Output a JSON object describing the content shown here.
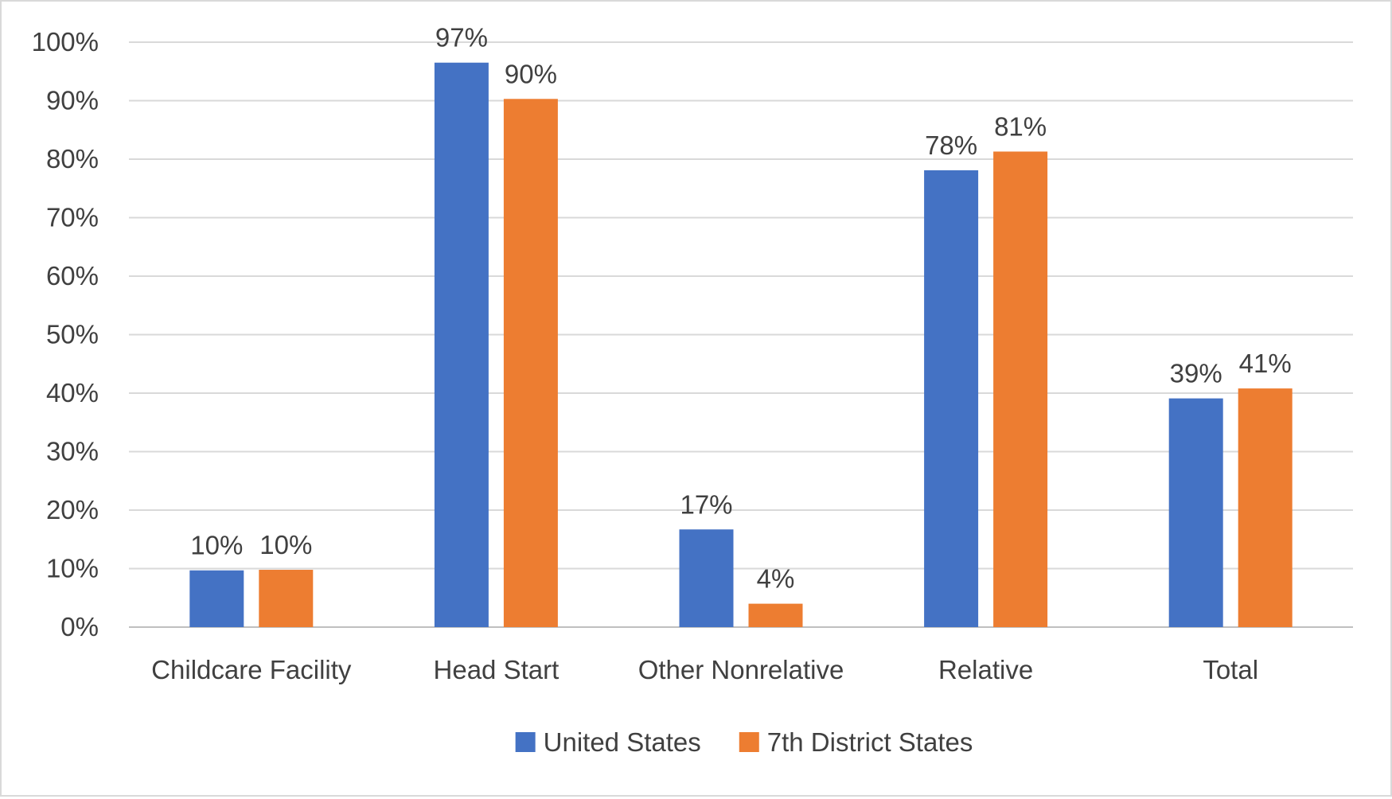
{
  "chart_data": {
    "type": "bar",
    "title": "",
    "xlabel": "",
    "ylabel": "",
    "ylim": [
      0,
      100
    ],
    "y_ticks": [
      "0%",
      "10%",
      "20%",
      "30%",
      "40%",
      "50%",
      "60%",
      "70%",
      "80%",
      "90%",
      "100%"
    ],
    "grid": true,
    "legend_position": "bottom",
    "categories": [
      "Childcare Facility",
      "Head Start",
      "Other Nonrelative",
      "Relative",
      "Total"
    ],
    "series": [
      {
        "name": "United States",
        "color": "#4472c4",
        "values": [
          9.7,
          96.5,
          16.7,
          78.1,
          39.1
        ],
        "labels": [
          "10%",
          "97%",
          "17%",
          "78%",
          "39%"
        ]
      },
      {
        "name": "7th District States",
        "color": "#ed7d31",
        "values": [
          9.8,
          90.3,
          4.0,
          81.3,
          40.8
        ],
        "labels": [
          "10%",
          "90%",
          "4%",
          "81%",
          "41%"
        ]
      }
    ]
  }
}
